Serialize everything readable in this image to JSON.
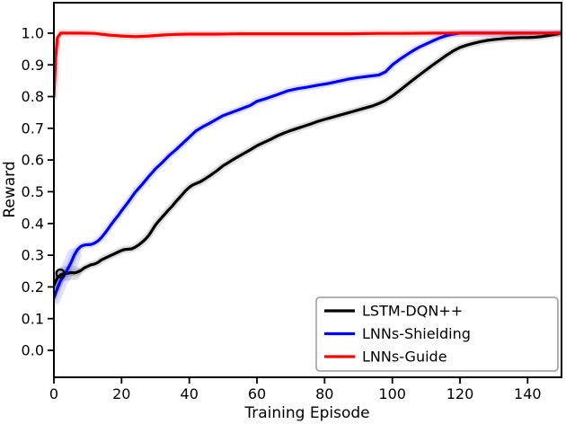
{
  "chart_data": {
    "type": "line",
    "title": "",
    "xlabel": "Training Episode",
    "ylabel": "Reward",
    "xlim": [
      0,
      150
    ],
    "ylim": [
      -0.085,
      1.096
    ],
    "xticks": [
      0,
      20,
      40,
      60,
      80,
      100,
      120,
      140
    ],
    "yticks": [
      "0.0",
      "0.1",
      "0.2",
      "0.3",
      "0.4",
      "0.5",
      "0.6",
      "0.7",
      "0.8",
      "0.9",
      "1.0"
    ],
    "grid": false,
    "legend": {
      "position": "lower right",
      "entries": [
        "LSTM-DQN++",
        "LNNs-Shielding",
        "LNNs-Guide"
      ]
    },
    "marker": {
      "series": "LSTM-DQN++",
      "x": 1.9,
      "y": 0.242,
      "shape": "open-circle"
    },
    "series": [
      {
        "name": "LSTM-DQN++",
        "color": "#000000",
        "wide_start_band": true,
        "points": [
          [
            0,
            0.205
          ],
          [
            1,
            0.228
          ],
          [
            2,
            0.238
          ],
          [
            3,
            0.242
          ],
          [
            4,
            0.243
          ],
          [
            5,
            0.245
          ],
          [
            6,
            0.244
          ],
          [
            7,
            0.247
          ],
          [
            8,
            0.252
          ],
          [
            9,
            0.26
          ],
          [
            10,
            0.265
          ],
          [
            11,
            0.27
          ],
          [
            12,
            0.272
          ],
          [
            13,
            0.277
          ],
          [
            14,
            0.285
          ],
          [
            15,
            0.29
          ],
          [
            16,
            0.295
          ],
          [
            17,
            0.3
          ],
          [
            18,
            0.305
          ],
          [
            19,
            0.31
          ],
          [
            20,
            0.315
          ],
          [
            21,
            0.318
          ],
          [
            22,
            0.319
          ],
          [
            23,
            0.32
          ],
          [
            24,
            0.325
          ],
          [
            25,
            0.332
          ],
          [
            26,
            0.34
          ],
          [
            27,
            0.35
          ],
          [
            28,
            0.362
          ],
          [
            29,
            0.378
          ],
          [
            30,
            0.395
          ],
          [
            31,
            0.408
          ],
          [
            32,
            0.42
          ],
          [
            33,
            0.432
          ],
          [
            34,
            0.444
          ],
          [
            35,
            0.455
          ],
          [
            36,
            0.468
          ],
          [
            37,
            0.48
          ],
          [
            38,
            0.492
          ],
          [
            39,
            0.504
          ],
          [
            40,
            0.514
          ],
          [
            41,
            0.521
          ],
          [
            42,
            0.526
          ],
          [
            43,
            0.53
          ],
          [
            44,
            0.536
          ],
          [
            45,
            0.543
          ],
          [
            46,
            0.55
          ],
          [
            48,
            0.565
          ],
          [
            50,
            0.582
          ],
          [
            52,
            0.595
          ],
          [
            54,
            0.608
          ],
          [
            56,
            0.62
          ],
          [
            58,
            0.632
          ],
          [
            60,
            0.645
          ],
          [
            62,
            0.655
          ],
          [
            64,
            0.665
          ],
          [
            66,
            0.676
          ],
          [
            68,
            0.685
          ],
          [
            70,
            0.693
          ],
          [
            72,
            0.7
          ],
          [
            74,
            0.707
          ],
          [
            76,
            0.714
          ],
          [
            78,
            0.722
          ],
          [
            80,
            0.728
          ],
          [
            82,
            0.734
          ],
          [
            84,
            0.74
          ],
          [
            86,
            0.746
          ],
          [
            88,
            0.752
          ],
          [
            90,
            0.758
          ],
          [
            92,
            0.764
          ],
          [
            94,
            0.77
          ],
          [
            96,
            0.778
          ],
          [
            98,
            0.788
          ],
          [
            100,
            0.802
          ],
          [
            102,
            0.818
          ],
          [
            104,
            0.835
          ],
          [
            106,
            0.852
          ],
          [
            108,
            0.868
          ],
          [
            110,
            0.884
          ],
          [
            112,
            0.9
          ],
          [
            114,
            0.915
          ],
          [
            116,
            0.93
          ],
          [
            118,
            0.944
          ],
          [
            120,
            0.955
          ],
          [
            122,
            0.962
          ],
          [
            124,
            0.968
          ],
          [
            126,
            0.973
          ],
          [
            128,
            0.977
          ],
          [
            130,
            0.98
          ],
          [
            132,
            0.982
          ],
          [
            134,
            0.984
          ],
          [
            136,
            0.985
          ],
          [
            138,
            0.986
          ],
          [
            140,
            0.986
          ],
          [
            142,
            0.987
          ],
          [
            144,
            0.989
          ],
          [
            146,
            0.992
          ],
          [
            148,
            0.996
          ],
          [
            150,
            1.0
          ]
        ]
      },
      {
        "name": "LNNs-Shielding",
        "color": "#0000ff",
        "wide_start_band": true,
        "points": [
          [
            0,
            0.165
          ],
          [
            1,
            0.195
          ],
          [
            2,
            0.22
          ],
          [
            3,
            0.235
          ],
          [
            4,
            0.255
          ],
          [
            5,
            0.275
          ],
          [
            6,
            0.3
          ],
          [
            7,
            0.318
          ],
          [
            8,
            0.328
          ],
          [
            9,
            0.332
          ],
          [
            10,
            0.333
          ],
          [
            11,
            0.334
          ],
          [
            12,
            0.338
          ],
          [
            13,
            0.345
          ],
          [
            14,
            0.355
          ],
          [
            15,
            0.368
          ],
          [
            16,
            0.383
          ],
          [
            17,
            0.398
          ],
          [
            18,
            0.412
          ],
          [
            19,
            0.425
          ],
          [
            20,
            0.44
          ],
          [
            22,
            0.468
          ],
          [
            24,
            0.498
          ],
          [
            26,
            0.522
          ],
          [
            28,
            0.548
          ],
          [
            30,
            0.572
          ],
          [
            32,
            0.592
          ],
          [
            34,
            0.614
          ],
          [
            36,
            0.632
          ],
          [
            38,
            0.652
          ],
          [
            40,
            0.672
          ],
          [
            42,
            0.692
          ],
          [
            44,
            0.705
          ],
          [
            46,
            0.716
          ],
          [
            48,
            0.728
          ],
          [
            50,
            0.74
          ],
          [
            52,
            0.748
          ],
          [
            54,
            0.756
          ],
          [
            56,
            0.764
          ],
          [
            58,
            0.772
          ],
          [
            60,
            0.785
          ],
          [
            63,
            0.795
          ],
          [
            66,
            0.806
          ],
          [
            69,
            0.818
          ],
          [
            72,
            0.825
          ],
          [
            75,
            0.83
          ],
          [
            78,
            0.836
          ],
          [
            81,
            0.841
          ],
          [
            84,
            0.848
          ],
          [
            87,
            0.855
          ],
          [
            90,
            0.86
          ],
          [
            93,
            0.864
          ],
          [
            96,
            0.868
          ],
          [
            98,
            0.878
          ],
          [
            100,
            0.9
          ],
          [
            102,
            0.916
          ],
          [
            104,
            0.93
          ],
          [
            106,
            0.944
          ],
          [
            108,
            0.956
          ],
          [
            110,
            0.966
          ],
          [
            112,
            0.976
          ],
          [
            114,
            0.985
          ],
          [
            116,
            0.992
          ],
          [
            118,
            0.997
          ],
          [
            120,
            1.0
          ],
          [
            125,
            1.0
          ],
          [
            130,
            1.0
          ],
          [
            140,
            1.0
          ],
          [
            150,
            1.0
          ]
        ]
      },
      {
        "name": "LNNs-Guide",
        "color": "#ff0000",
        "wide_start_band": false,
        "points": [
          [
            0,
            0.8
          ],
          [
            0.5,
            0.92
          ],
          [
            1,
            0.985
          ],
          [
            2,
            1.0
          ],
          [
            4,
            1.0
          ],
          [
            8,
            1.0
          ],
          [
            12,
            0.999
          ],
          [
            16,
            0.994
          ],
          [
            20,
            0.991
          ],
          [
            24,
            0.989
          ],
          [
            28,
            0.991
          ],
          [
            32,
            0.994
          ],
          [
            36,
            0.996
          ],
          [
            40,
            0.997
          ],
          [
            48,
            0.997
          ],
          [
            56,
            0.998
          ],
          [
            64,
            0.998
          ],
          [
            72,
            0.998
          ],
          [
            80,
            0.998
          ],
          [
            88,
            0.998
          ],
          [
            96,
            0.999
          ],
          [
            104,
            0.999
          ],
          [
            112,
            1.0
          ],
          [
            120,
            1.0
          ],
          [
            128,
            1.0
          ],
          [
            136,
            1.0
          ],
          [
            144,
            1.0
          ],
          [
            150,
            1.0
          ]
        ]
      }
    ]
  }
}
